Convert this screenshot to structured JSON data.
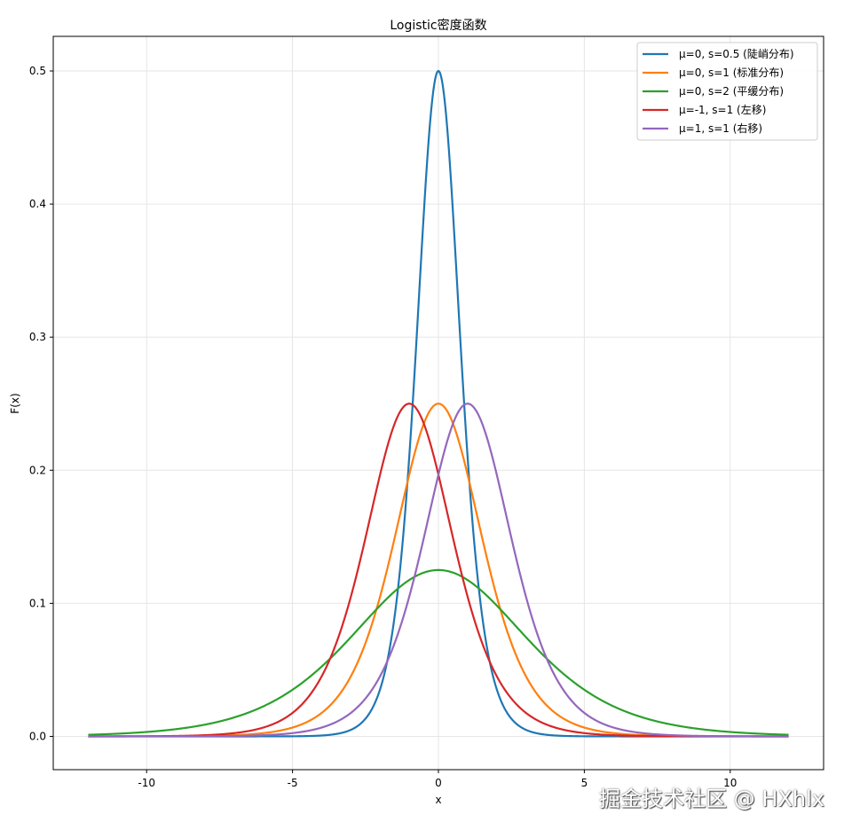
{
  "chart_data": {
    "type": "line",
    "title": "Logistic密度函数",
    "xlabel": "x",
    "ylabel": "F(x)",
    "xlim": [
      -13.2,
      13.2
    ],
    "ylim": [
      -0.025,
      0.526
    ],
    "x_range": [
      -12,
      12
    ],
    "xticks": [
      -10,
      -5,
      0,
      5,
      10
    ],
    "xtick_labels": [
      "-10",
      "-5",
      "0",
      "5",
      "10"
    ],
    "yticks": [
      0.0,
      0.1,
      0.2,
      0.3,
      0.4,
      0.5
    ],
    "ytick_labels": [
      "0.0",
      "0.1",
      "0.2",
      "0.3",
      "0.4",
      "0.5"
    ],
    "grid": true,
    "legend_position": "top-right",
    "function": "logistic pdf: exp(-(x-μ)/s) / (s·(1+exp(-(x-μ)/s))^2)",
    "series": [
      {
        "name": "μ=0, s=0.5 (陡峭分布)",
        "mu": 0,
        "s": 0.5,
        "color": "#1f77b4"
      },
      {
        "name": "μ=0, s=1 (标准分布)",
        "mu": 0,
        "s": 1,
        "color": "#ff7f0e"
      },
      {
        "name": "μ=0, s=2 (平缓分布)",
        "mu": 0,
        "s": 2,
        "color": "#2ca02c"
      },
      {
        "name": "μ=-1, s=1 (左移)",
        "mu": -1,
        "s": 1,
        "color": "#d62728"
      },
      {
        "name": "μ=1, s=1 (右移)",
        "mu": 1,
        "s": 1,
        "color": "#9467bd"
      }
    ]
  },
  "watermark": "掘金技术社区 @ HXhlx"
}
